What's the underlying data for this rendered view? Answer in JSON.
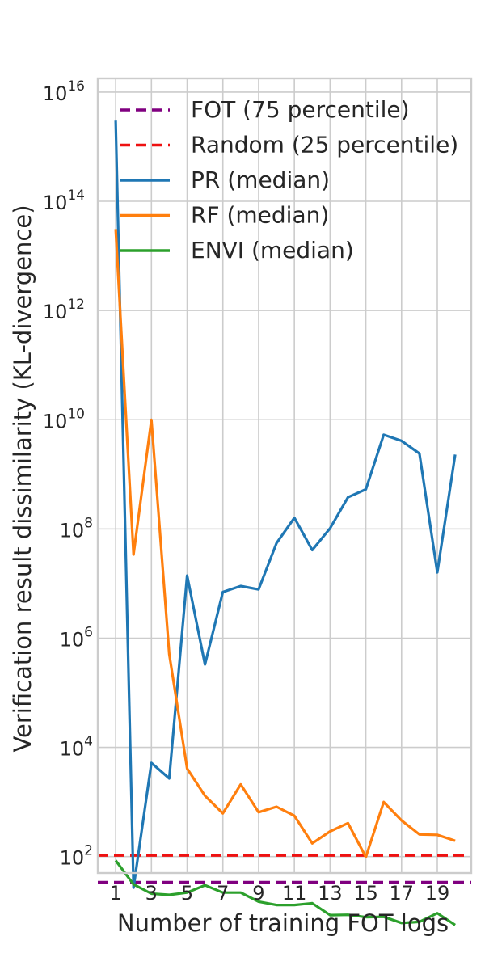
{
  "chart_data": {
    "type": "line",
    "title": "",
    "xlabel": "Number of training FOT logs",
    "ylabel": "Verification result dissimilarity (KL-divergence)",
    "yscale": "log",
    "xlim": [
      0.0,
      20.9
    ],
    "ylim_log10": [
      1.7,
      16.25
    ],
    "grid": true,
    "legend_position": "top-right",
    "x_ticks": [
      1,
      3,
      5,
      7,
      9,
      11,
      13,
      15,
      17,
      19
    ],
    "y_ticks": [
      {
        "base": "10",
        "exp": "2",
        "value_log10": 2
      },
      {
        "base": "10",
        "exp": "4",
        "value_log10": 4
      },
      {
        "base": "10",
        "exp": "6",
        "value_log10": 6
      },
      {
        "base": "10",
        "exp": "8",
        "value_log10": 8
      },
      {
        "base": "10",
        "exp": "10",
        "value_log10": 10
      },
      {
        "base": "10",
        "exp": "12",
        "value_log10": 12
      },
      {
        "base": "10",
        "exp": "14",
        "value_log10": 14
      },
      {
        "base": "10",
        "exp": "16",
        "value_log10": 16
      }
    ],
    "x": [
      1,
      2,
      3,
      4,
      5,
      6,
      7,
      8,
      9,
      10,
      11,
      12,
      13,
      14,
      15,
      16,
      17,
      18,
      19,
      20
    ],
    "reference_lines": [
      {
        "name": "FOT (75 percentile)",
        "value": 34,
        "color": "#800080"
      },
      {
        "name": "Random (25 percentile)",
        "value": 105,
        "color": "#ee1111"
      }
    ],
    "series": [
      {
        "name": "PR (median)",
        "color": "#1f77b4",
        "values": [
          3000000000000000.0,
          27,
          5200,
          2700,
          14000000.0,
          330000.0,
          7000000.0,
          9000000.0,
          7800000.0,
          55000000.0,
          160000000.0,
          41000000.0,
          103000000.0,
          380000000.0,
          530000000.0,
          5300000000.0,
          4100000000.0,
          2400000000.0,
          16000000.0,
          2300000000.0
        ]
      },
      {
        "name": "RF (median)",
        "color": "#ff7f0e",
        "values": [
          31000000000000.0,
          34000000.0,
          10000000000.0,
          510000.0,
          4100,
          1300,
          620,
          2100,
          650,
          820,
          560,
          175,
          290,
          410,
          98,
          1000,
          460,
          255,
          250,
          195
        ]
      },
      {
        "name": "ENVI (median)",
        "color": "#2ca02c",
        "values": [
          85,
          31,
          21,
          20,
          22,
          30,
          22,
          22,
          15,
          13,
          13,
          14,
          8.5,
          8.6,
          7.8,
          7.9,
          6.1,
          6.4,
          9.2,
          5.6
        ]
      }
    ]
  }
}
